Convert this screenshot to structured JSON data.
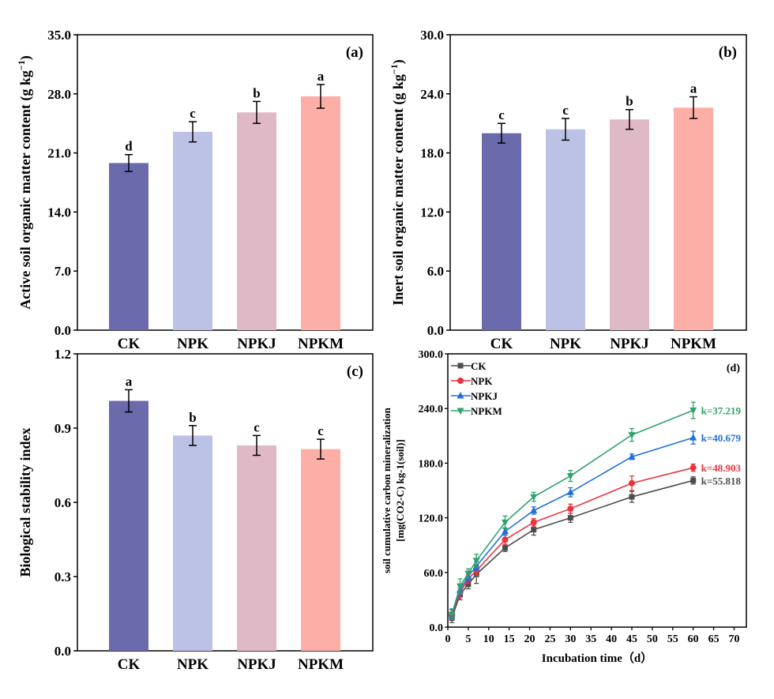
{
  "chart_data": [
    {
      "type": "bar",
      "panel_label": "(a)",
      "ylabel": "Active soil organic matter content (g kg",
      "ylabel_sup": "−1",
      "ylabel_end": ")",
      "categories": [
        "CK",
        "NPK",
        "NPKJ",
        "NPKM"
      ],
      "values": [
        19.8,
        23.5,
        25.8,
        27.7
      ],
      "errors": [
        1.0,
        1.2,
        1.3,
        1.4
      ],
      "letters": [
        "d",
        "c",
        "b",
        "a"
      ],
      "ylim": [
        0,
        35
      ],
      "yticks": [
        "0.0",
        "7.0",
        "14.0",
        "21.0",
        "28.0",
        "35.0"
      ],
      "colors": [
        "#6a6aad",
        "#bcc2e6",
        "#e0b9c6",
        "#fdaea6"
      ]
    },
    {
      "type": "bar",
      "panel_label": "(b)",
      "ylabel": "Inert soil organic matter content (g kg",
      "ylabel_sup": "−1",
      "ylabel_end": ")",
      "categories": [
        "CK",
        "NPK",
        "NPKJ",
        "NPKM"
      ],
      "values": [
        20.0,
        20.4,
        21.4,
        22.6
      ],
      "errors": [
        1.0,
        1.1,
        1.0,
        1.1
      ],
      "letters": [
        "c",
        "c",
        "b",
        "a"
      ],
      "ylim": [
        0,
        30
      ],
      "yticks": [
        "0.0",
        "6.0",
        "12.0",
        "18.0",
        "24.0",
        "30.0"
      ],
      "colors": [
        "#6a6aad",
        "#bcc2e6",
        "#e0b9c6",
        "#fdaea6"
      ]
    },
    {
      "type": "bar",
      "panel_label": "(c)",
      "ylabel": "Biological stability index",
      "categories": [
        "CK",
        "NPK",
        "NPKJ",
        "NPKM"
      ],
      "values": [
        1.01,
        0.87,
        0.83,
        0.815
      ],
      "errors": [
        0.045,
        0.04,
        0.04,
        0.04
      ],
      "letters": [
        "a",
        "b",
        "c",
        "c"
      ],
      "ylim": [
        0,
        1.2
      ],
      "yticks": [
        "0.0",
        "0.3",
        "0.6",
        "0.9",
        "1.2"
      ],
      "colors": [
        "#6a6aad",
        "#bcc2e6",
        "#e0b9c6",
        "#fdaea6"
      ]
    },
    {
      "type": "line",
      "panel_label": "(d)",
      "ylabel": "soil cumulative carbon mineralization",
      "ylabel2": "[mg(CO2-C) kg-1(soil)]",
      "xlabel": "Incubation time（d）",
      "x": [
        1,
        3,
        5,
        7,
        14,
        21,
        30,
        45,
        60
      ],
      "xlim": [
        0,
        73
      ],
      "ylim": [
        0,
        300
      ],
      "xticks": [
        "0",
        "5",
        "10",
        "15",
        "20",
        "25",
        "30",
        "35",
        "40",
        "45",
        "50",
        "55",
        "60",
        "65",
        "70"
      ],
      "yticks": [
        "0.0",
        "60.0",
        "120.0",
        "180.0",
        "240.0",
        "300.0"
      ],
      "legend_position": "top-left",
      "series": [
        {
          "name": "CK",
          "marker": "square",
          "color": "#4d4d4d",
          "values": [
            10,
            36,
            47,
            58,
            87,
            107,
            120,
            143,
            161
          ],
          "errors": [
            5,
            6,
            5,
            10,
            4,
            6,
            5,
            6,
            4
          ],
          "k_label": "k=55.818"
        },
        {
          "name": "NPK",
          "marker": "circle",
          "color": "#e8343c",
          "values": [
            14,
            38,
            53,
            62,
            96,
            115,
            130,
            158,
            175
          ],
          "errors": [
            5,
            6,
            5,
            5,
            5,
            4,
            5,
            8,
            4
          ],
          "k_label": "k=48.903"
        },
        {
          "name": "NPKJ",
          "marker": "triangle-up",
          "color": "#2070d8",
          "values": [
            15,
            41,
            56,
            67,
            105,
            128,
            148,
            187,
            208
          ],
          "errors": [
            5,
            6,
            5,
            5,
            4,
            4,
            5,
            3,
            7
          ],
          "k_label": "k=40.679"
        },
        {
          "name": "NPKM",
          "marker": "triangle-down",
          "color": "#2ea36c",
          "values": [
            14,
            45,
            59,
            73,
            115,
            143,
            166,
            211,
            238
          ],
          "errors": [
            5,
            8,
            5,
            7,
            7,
            5,
            6,
            7,
            9
          ],
          "k_label": "k=37.219"
        }
      ]
    }
  ]
}
